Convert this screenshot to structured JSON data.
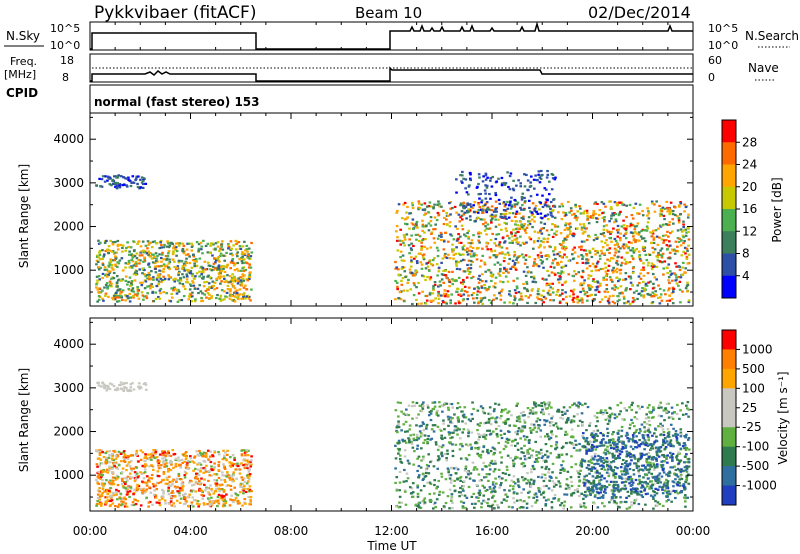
{
  "header": {
    "station": "Pykkvibaer (fitACF)",
    "beam": "Beam 10",
    "date": "02/Dec/2014"
  },
  "panels": {
    "nsky": {
      "left_label": "N.Sky",
      "right_label": "N.Search",
      "left_ticks": [
        "10^5",
        "10^0"
      ],
      "right_ticks": [
        "10^5",
        "10^0"
      ]
    },
    "freq": {
      "left_label_line1": "Freq.",
      "left_label_line2": "[MHz]",
      "right_label": "Nave",
      "left_ticks": [
        "18",
        "8"
      ],
      "right_ticks": [
        "60",
        "0"
      ]
    },
    "cpid": {
      "label": "CPID",
      "value": "normal (fast stereo) 153"
    }
  },
  "chart_data": [
    {
      "type": "heatmap",
      "name": "power",
      "ylabel": "Slant Range [km]",
      "ylim": [
        180,
        4600
      ],
      "yticks": [
        "1000",
        "2000",
        "3000",
        "4000"
      ],
      "ytick_values": [
        1000,
        2000,
        3000,
        4000
      ],
      "colorbar_label": "Power [dB]",
      "colorbar_ticks": [
        "4",
        "8",
        "12",
        "16",
        "20",
        "24",
        "28"
      ],
      "colorbar_colors": [
        "#0000ff",
        "#2d4fa6",
        "#3c7f5d",
        "#4caf50",
        "#c8c800",
        "#ffa500",
        "#ff6a00",
        "#ff0000"
      ]
    },
    {
      "type": "heatmap",
      "name": "velocity",
      "ylabel": "Slant Range [km]",
      "ylim": [
        180,
        4600
      ],
      "yticks": [
        "1000",
        "2000",
        "3000",
        "4000"
      ],
      "ytick_values": [
        1000,
        2000,
        3000,
        4000
      ],
      "colorbar_label": "Velocity [m s⁻¹]",
      "colorbar_ticks": [
        "1000",
        "500",
        "100",
        "25",
        "-25",
        "-100",
        "-500",
        "-1000"
      ],
      "colorbar_colors": [
        "#1f3fbf",
        "#2e6f9f",
        "#2f7a4f",
        "#5fb040",
        "#c8c8c0",
        "#c8c8c0",
        "#ffa500",
        "#ff7f00",
        "#ff0000"
      ]
    }
  ],
  "time_axis": {
    "label": "Time UT",
    "ticks": [
      "00:00",
      "04:00",
      "08:00",
      "12:00",
      "16:00",
      "20:00",
      "00:00"
    ],
    "hours": [
      0,
      4,
      8,
      12,
      16,
      20,
      24
    ],
    "data_gap": [
      6.5,
      12
    ]
  }
}
